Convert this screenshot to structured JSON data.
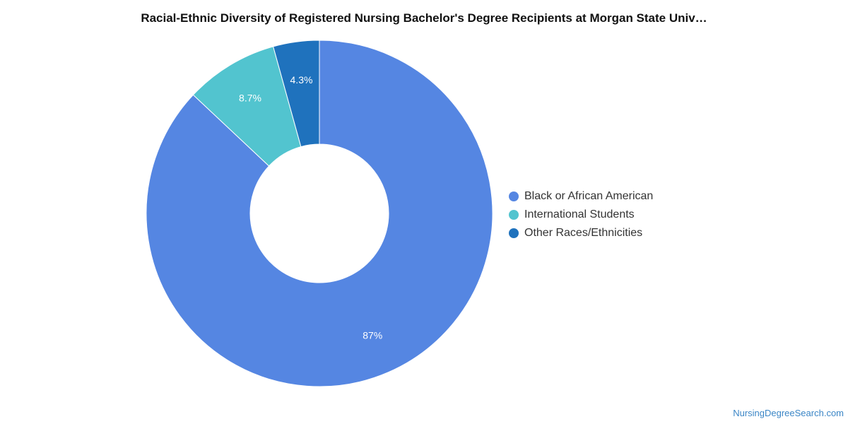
{
  "chart_data": {
    "type": "pie",
    "title": "Racial-Ethnic Diversity of Registered Nursing Bachelor's Degree Recipients at Morgan State Univ…",
    "legend_position": "right",
    "donut": true,
    "slices": [
      {
        "name": "Black or African American",
        "value": 87,
        "label": "87%",
        "color": "#5586e2"
      },
      {
        "name": "International Students",
        "value": 8.7,
        "label": "8.7%",
        "color": "#52c4cf"
      },
      {
        "name": "Other Races/Ethnicities",
        "value": 4.3,
        "label": "4.3%",
        "color": "#1f72bd"
      }
    ]
  },
  "footer": {
    "source": "NursingDegreeSearch.com"
  }
}
